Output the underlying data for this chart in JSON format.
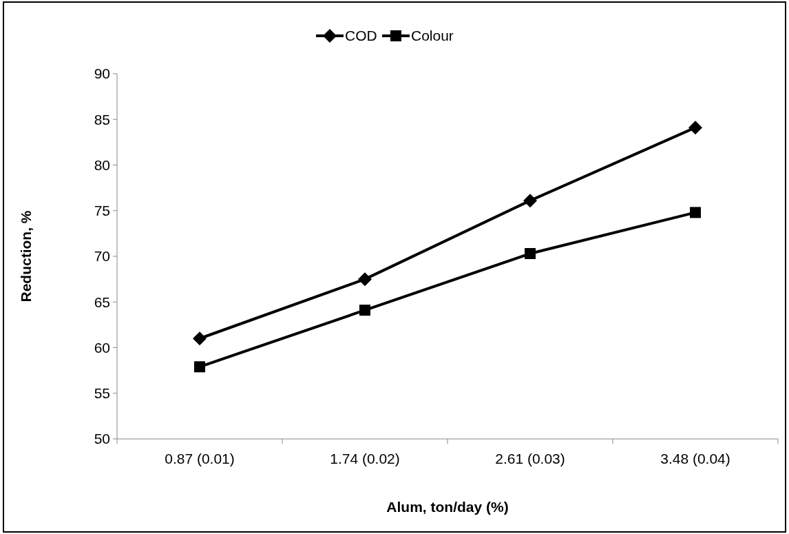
{
  "chart_data": {
    "type": "line",
    "xlabel": "Alum, ton/day (%)",
    "ylabel": "Reduction,  %",
    "categories": [
      "0.87 (0.01)",
      "1.74 (0.02)",
      "2.61 (0.03)",
      "3.48 (0.04)"
    ],
    "series": [
      {
        "name": "COD",
        "color": "#000000",
        "marker": "diamond",
        "values": [
          61.0,
          67.5,
          76.1,
          84.1
        ]
      },
      {
        "name": "Colour",
        "color": "#000000",
        "marker": "square",
        "values": [
          57.9,
          64.1,
          70.3,
          74.8
        ]
      }
    ],
    "ylim": [
      50,
      90
    ],
    "yticks": [
      50,
      55,
      60,
      65,
      70,
      75,
      80,
      85,
      90
    ],
    "grid": false,
    "legend": "top",
    "line_style": "solid"
  }
}
